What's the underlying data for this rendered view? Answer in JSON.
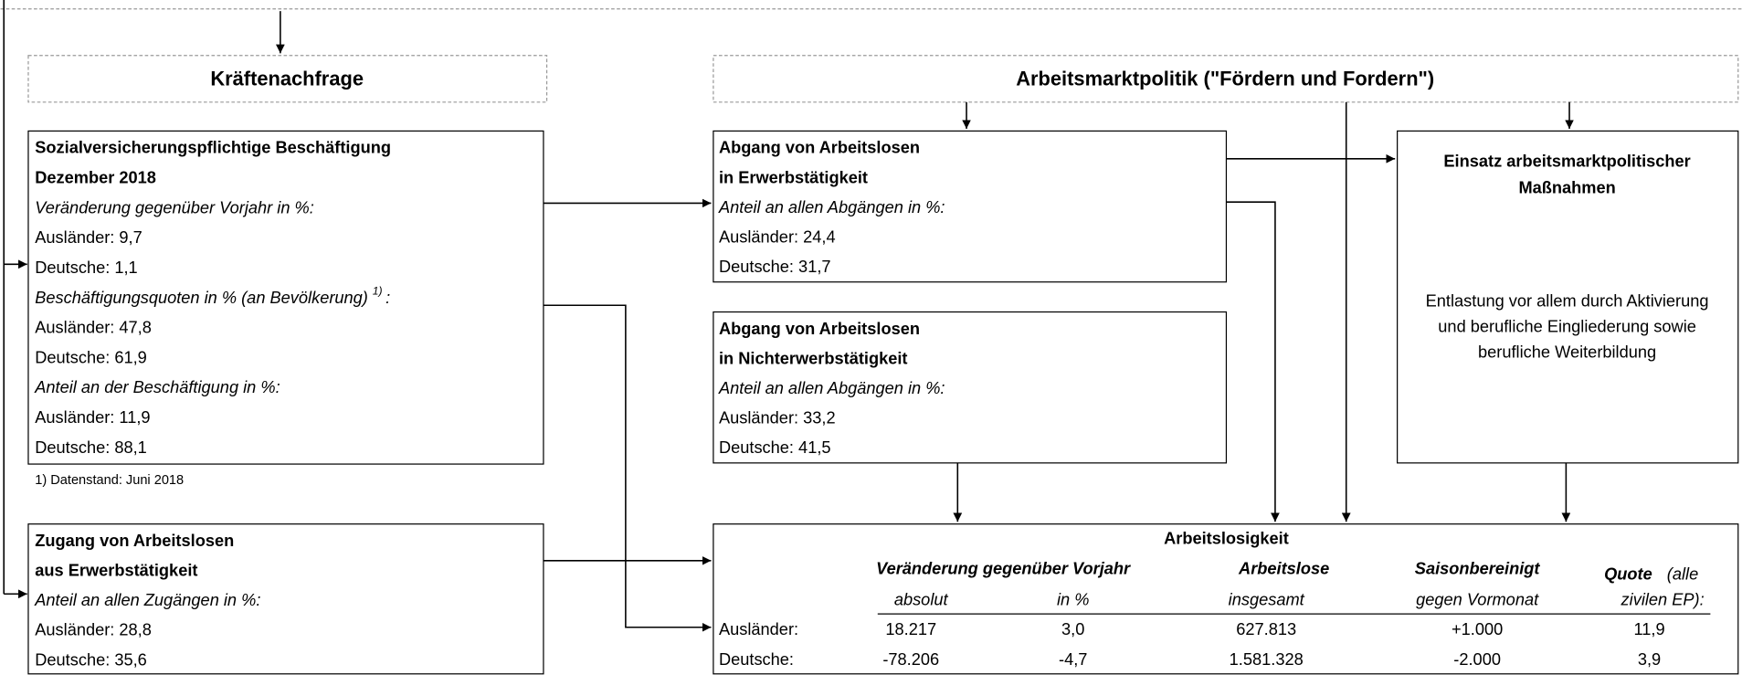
{
  "kraeftenachfrage": {
    "title": "Kräftenachfrage"
  },
  "arbeitsmarktpolitik": {
    "title": "Arbeitsmarktpolitik (\"Fördern und Fordern\")"
  },
  "beschaeftigung": {
    "lines": [
      "Sozialversicherungspflichtige Beschäftigung",
      "Dezember 2018",
      "Veränderung gegenüber Vorjahr in %:",
      "Ausländer: 9,7",
      "Deutsche: 1,1",
      "Beschäftigungsquoten in % (an Bevölkerung)",
      "Ausländer: 47,8",
      "Deutsche: 61,9",
      "Anteil an der Beschäftigung in %:",
      "Ausländer: 11,9",
      "Deutsche: 88,1"
    ],
    "footnote_ref": "1)",
    "colon": ":",
    "footnote": "1) Datenstand: Juni 2018"
  },
  "zugang": {
    "lines": [
      "Zugang von Arbeitslosen",
      "aus Erwerbstätigkeit",
      "Anteil an allen Zugängen in %:",
      "Ausländer: 28,8",
      "Deutsche: 35,6"
    ]
  },
  "abgang_erwerb": {
    "lines": [
      "Abgang von Arbeitslosen",
      "in Erwerbstätigkeit",
      "Anteil an allen Abgängen in %:",
      "Ausländer: 24,4",
      "Deutsche: 31,7"
    ]
  },
  "abgang_nichterwerb": {
    "lines": [
      "Abgang von Arbeitslosen",
      "in Nichterwerbstätigkeit",
      "Anteil an allen Abgängen in %:",
      "Ausländer: 33,2",
      "Deutsche: 41,5"
    ]
  },
  "einsatz": {
    "title": [
      "Einsatz arbeitsmarktpolitischer",
      "Maßnahmen"
    ],
    "body": [
      "Entlastung vor allem durch Aktivierung",
      "und berufliche Eingliederung sowie",
      "berufliche Weiterbildung"
    ]
  },
  "arbeitslosigkeit": {
    "title": "Arbeitslosigkeit",
    "header": {
      "change": "Veränderung gegenüber Vorjahr",
      "absolute": "absolut",
      "percent": "in %",
      "total": "Arbeitslose",
      "total_sub": "insgesamt",
      "seasonal": "Saisonbereinigt",
      "seasonal_sub": "gegen Vormonat",
      "rate": "Quote",
      "rate_note": "(alle",
      "rate_sub": "zivilen EP):"
    },
    "rows": [
      [
        "Ausländer:",
        "18.217",
        "3,0",
        "627.813",
        "+1.000",
        "11,9"
      ],
      [
        "Deutsche:",
        "-78.206",
        "-4,7",
        "1.581.328",
        "-2.000",
        "3,9"
      ]
    ]
  }
}
